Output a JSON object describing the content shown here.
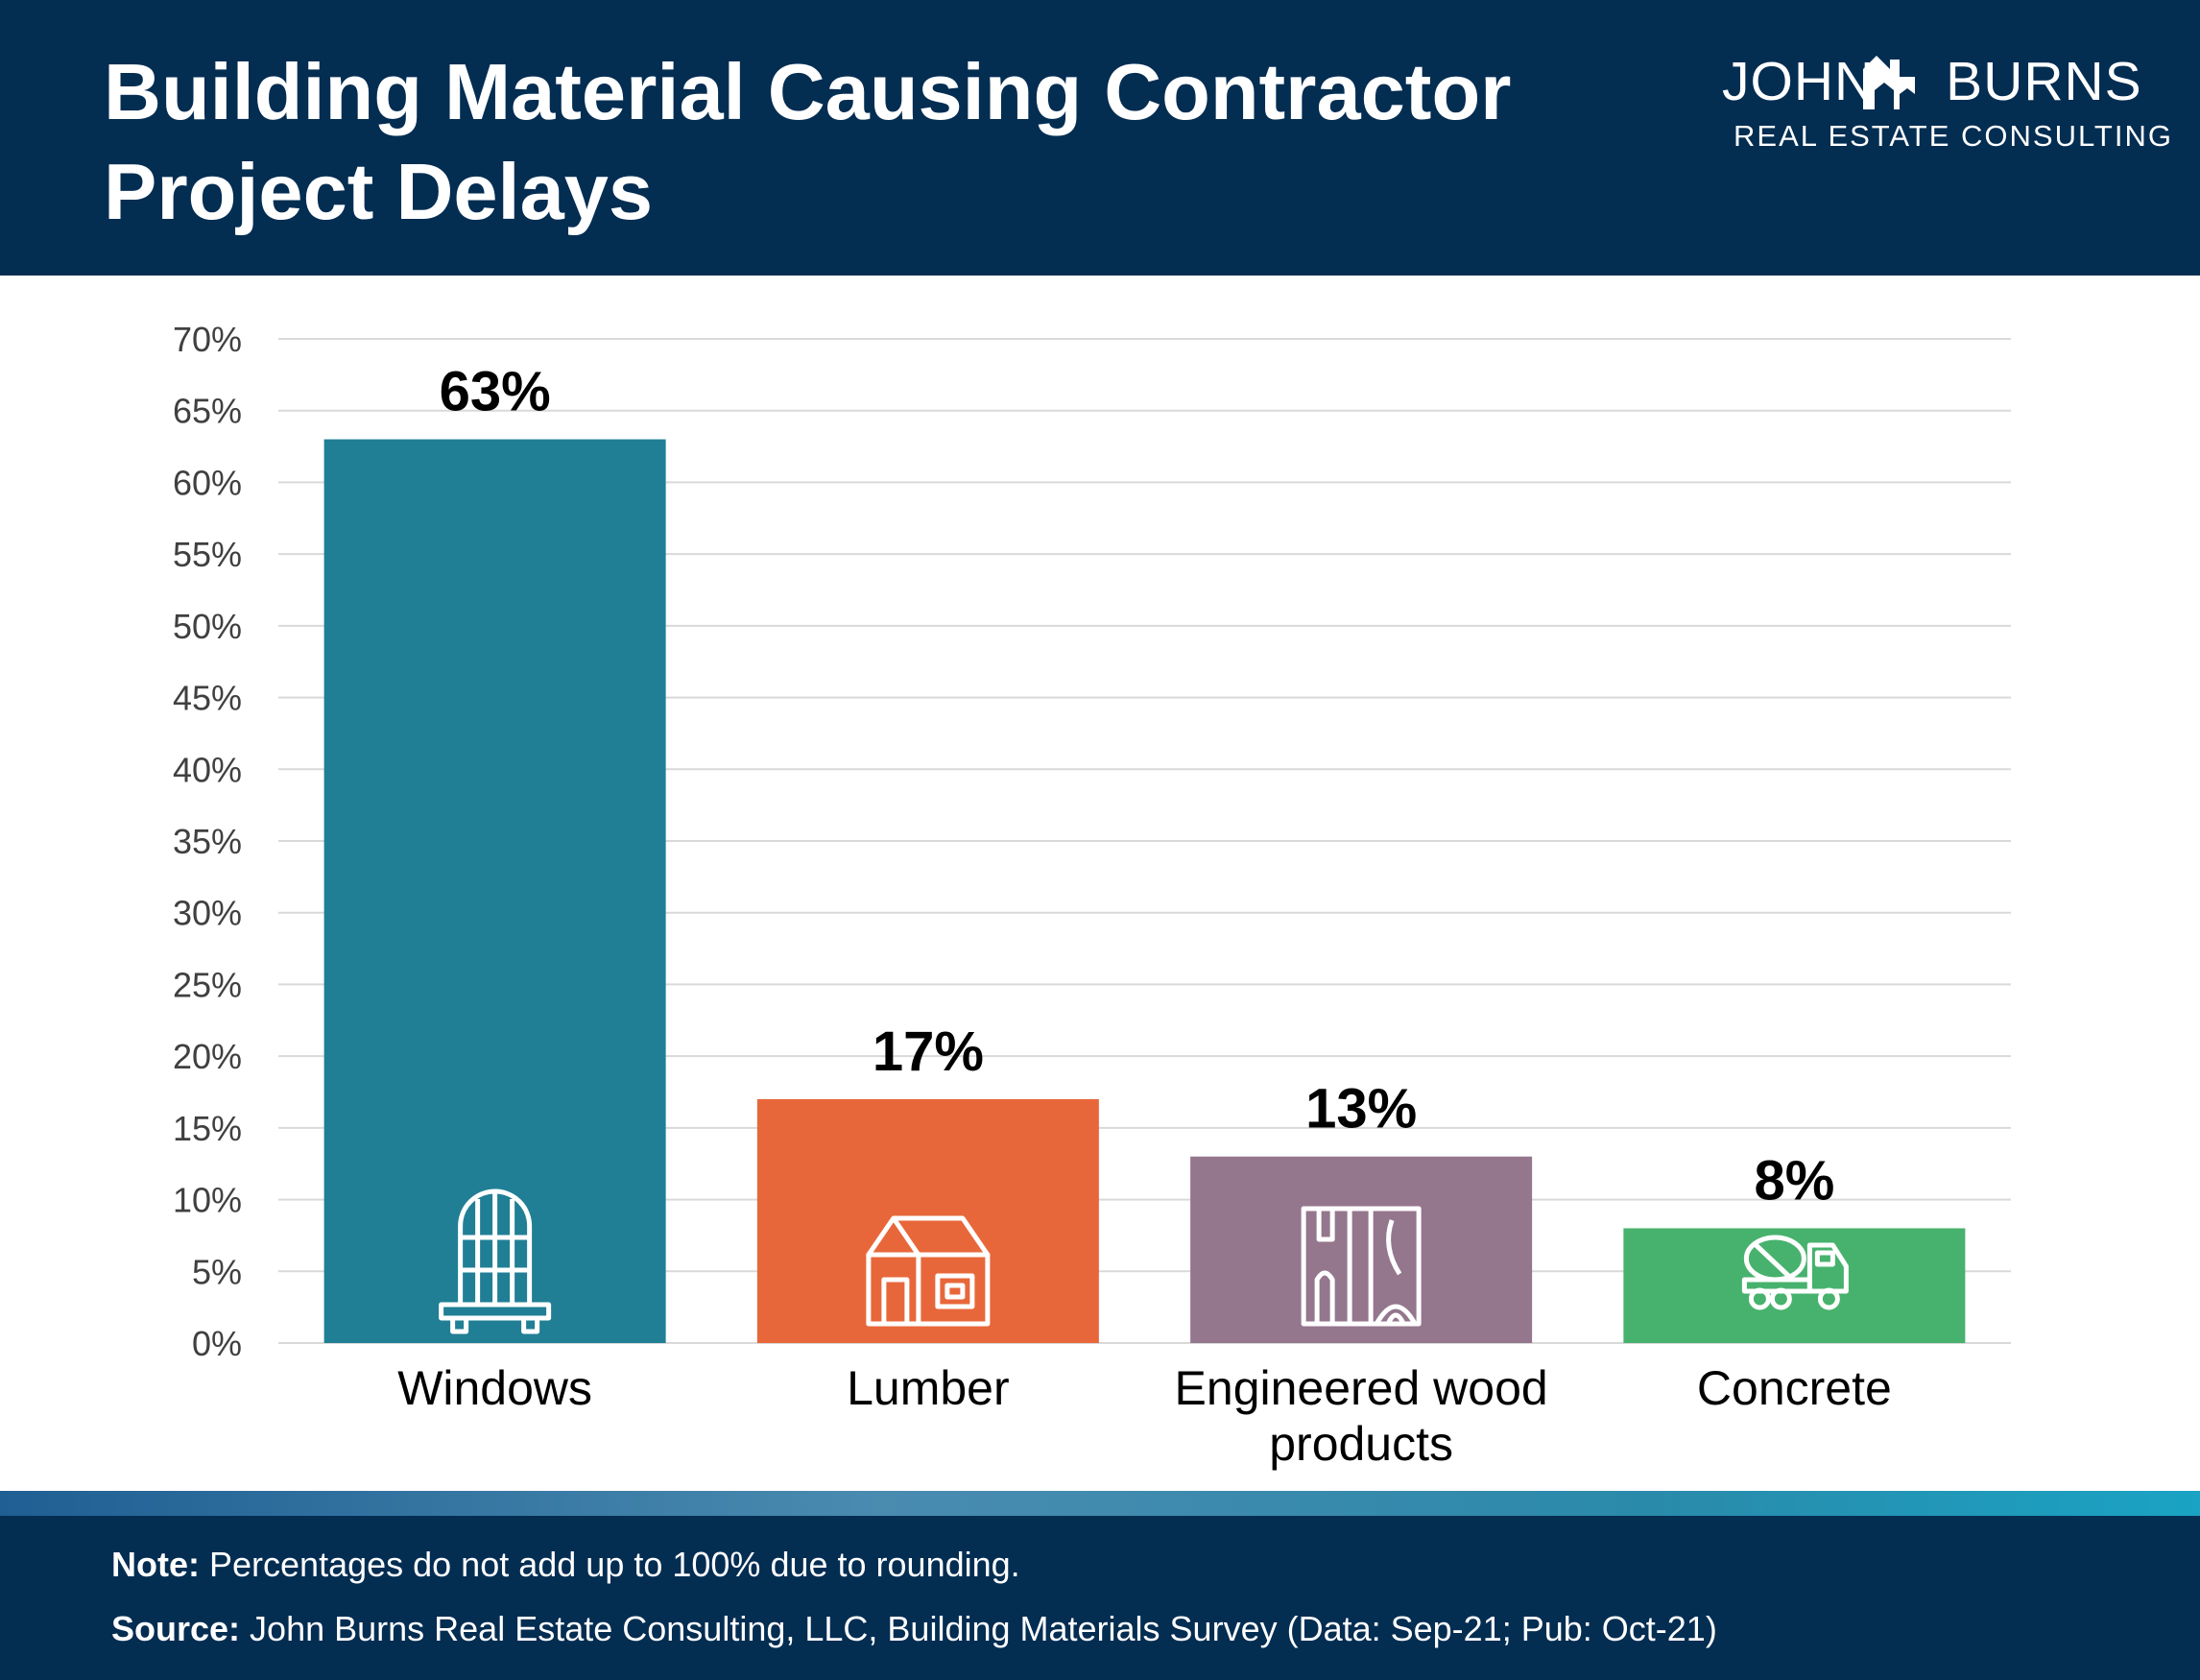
{
  "header": {
    "title_line1": "Building Material Causing Contractor",
    "title_line2": "Project Delays",
    "logo_word_left": "JOHN",
    "logo_word_right": "BURNS",
    "logo_subtitle": "REAL ESTATE CONSULTING"
  },
  "chart_data": {
    "type": "bar",
    "categories": [
      "Windows",
      "Lumber",
      "Engineered wood products",
      "Concrete"
    ],
    "category_label_lines": [
      [
        "Windows"
      ],
      [
        "Lumber"
      ],
      [
        "Engineered wood",
        "products"
      ],
      [
        "Concrete"
      ]
    ],
    "values": [
      63,
      17,
      13,
      8
    ],
    "value_labels": [
      "63%",
      "17%",
      "13%",
      "8%"
    ],
    "ylim": [
      0,
      70
    ],
    "y_ticks": [
      0,
      5,
      10,
      15,
      20,
      25,
      30,
      35,
      40,
      45,
      50,
      55,
      60,
      65,
      70
    ],
    "y_tick_labels": [
      "0%",
      "5%",
      "10%",
      "15%",
      "20%",
      "25%",
      "30%",
      "35%",
      "40%",
      "45%",
      "50%",
      "55%",
      "60%",
      "65%",
      "70%"
    ],
    "colors": [
      "#207f95",
      "#e8673a",
      "#94768d",
      "#47b26d"
    ],
    "icons": [
      "window-icon",
      "house-icon",
      "wood-grain-icon",
      "cement-truck-icon"
    ],
    "grid": true,
    "gridline_color": "#d9d9d9"
  },
  "footer": {
    "note_label": "Note:",
    "note_text": " Percentages do not add up to 100% due to rounding.",
    "source_label": "Source:",
    "source_text": " John Burns Real Estate Consulting, LLC, Building Materials Survey (Data: Sep-21; Pub: Oct-21)"
  },
  "theme": {
    "header_bg": "#042d52",
    "footer_bg": "#042d52"
  }
}
